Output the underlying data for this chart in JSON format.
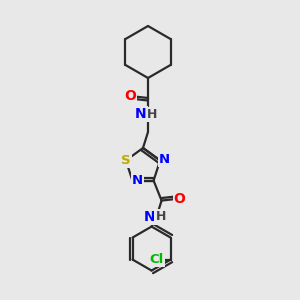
{
  "background_color": "#e8e8e8",
  "bond_color": "#2a2a2a",
  "atom_colors": {
    "N": "#0000FF",
    "O": "#FF0000",
    "S": "#BBAA00",
    "Cl": "#00BB00",
    "C": "#2a2a2a",
    "H": "#555555"
  },
  "line_width": 1.6,
  "font_size": 9.5
}
